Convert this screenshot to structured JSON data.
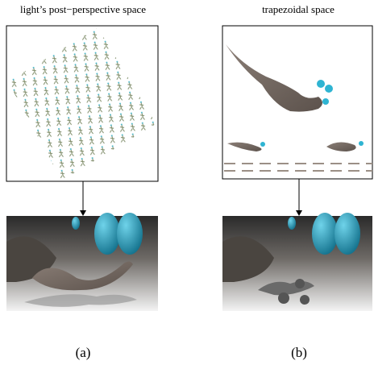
{
  "panels": [
    {
      "title": "light’s post−perspective space",
      "caption": "(a)"
    },
    {
      "title": "trapezoidal space",
      "caption": "(b)"
    }
  ]
}
